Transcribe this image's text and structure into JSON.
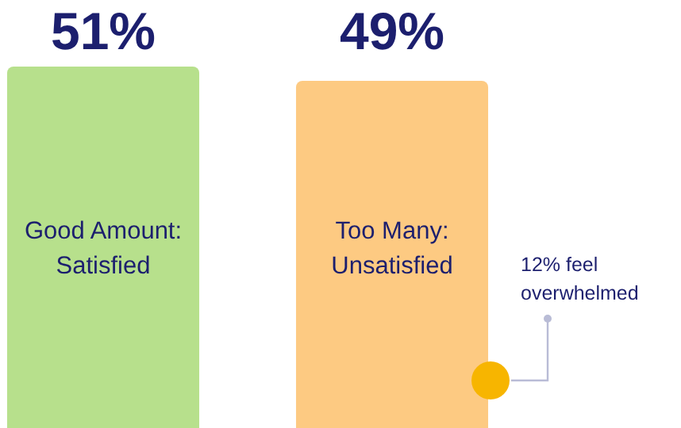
{
  "chart_data": {
    "type": "bar",
    "categories": [
      "Good Amount: Satisfied",
      "Too Many: Unsatisfied"
    ],
    "values": [
      51,
      49
    ],
    "colors": [
      "#b7e08c",
      "#fdca82"
    ],
    "value_labels": [
      "51%",
      "49%"
    ],
    "annotations": [
      "12% feel overwhelmed"
    ]
  }
}
